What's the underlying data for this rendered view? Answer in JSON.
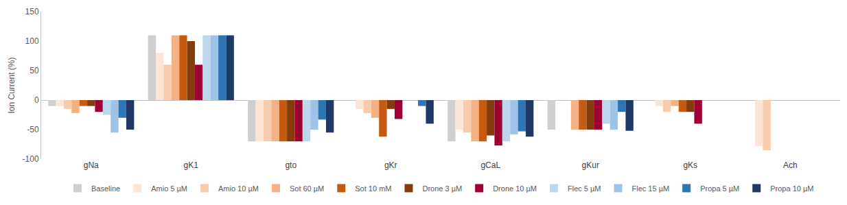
{
  "chart_data": {
    "type": "bar",
    "y_label": "Ion Current (%)",
    "categories": [
      "gNa",
      "gK1",
      "gto",
      "gKr",
      "gCaL",
      "gKur",
      "gKs",
      "Ach"
    ],
    "ylim": [
      -100,
      150
    ],
    "yticks": [
      -100,
      -50,
      0,
      50,
      100,
      150
    ],
    "grid": false,
    "legend": "bottom",
    "series": [
      {
        "name": "Baseline",
        "color": "#d0cece",
        "values": [
          -10,
          110,
          -70,
          0,
          -70,
          -50,
          0,
          0
        ]
      },
      {
        "name": "Amio 5 µM",
        "color": "#fbe5d6",
        "values": [
          -10,
          80,
          -70,
          -15,
          -50,
          0,
          -10,
          -78
        ]
      },
      {
        "name": "Amio 10 µM",
        "color": "#f8cbad",
        "values": [
          -15,
          60,
          -70,
          -22,
          -55,
          0,
          -20,
          -85
        ]
      },
      {
        "name": "Sot 60 µM",
        "color": "#f4b183",
        "values": [
          -22,
          110,
          -70,
          -30,
          -70,
          -50,
          -10,
          0
        ]
      },
      {
        "name": "Sot 10 mM",
        "color": "#c55a11",
        "values": [
          -10,
          110,
          -70,
          -62,
          -70,
          -50,
          -20,
          0
        ]
      },
      {
        "name": "Drone 3 µM",
        "color": "#843c0c",
        "values": [
          -10,
          100,
          -70,
          -15,
          -60,
          -50,
          -20,
          0
        ]
      },
      {
        "name": "Drone 10 µM",
        "color": "#9e0033",
        "values": [
          -20,
          60,
          -70,
          -32,
          -77,
          -50,
          -40,
          0
        ]
      },
      {
        "name": "Flec 5 µM",
        "color": "#bdd7ee",
        "values": [
          -25,
          110,
          -70,
          0,
          -70,
          -40,
          0,
          0
        ]
      },
      {
        "name": "Flec 15 µM",
        "color": "#9dc3e6",
        "values": [
          -55,
          110,
          -50,
          0,
          -58,
          -50,
          0,
          0
        ]
      },
      {
        "name": "Propa 5 µM",
        "color": "#2e75b6",
        "values": [
          -30,
          110,
          -33,
          -10,
          -53,
          -20,
          0,
          0
        ]
      },
      {
        "name": "Propa 10 µM",
        "color": "#1f3864",
        "values": [
          -50,
          110,
          -55,
          -40,
          -62,
          -52,
          0,
          0
        ]
      }
    ]
  }
}
